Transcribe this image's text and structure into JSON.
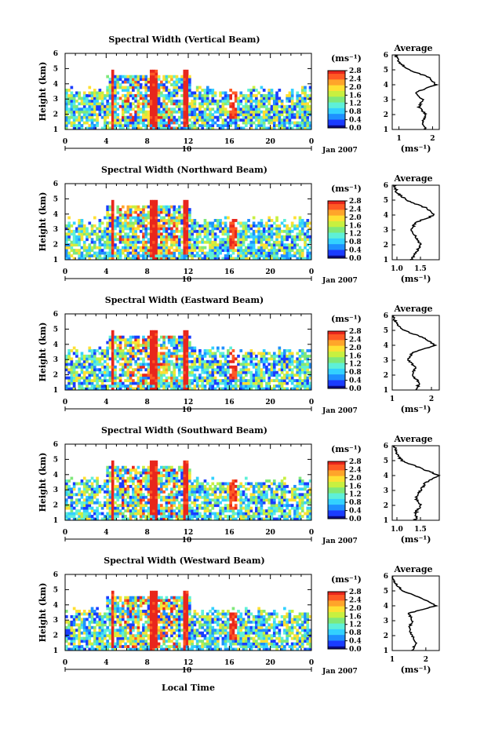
{
  "chart_data": {
    "type": "heatmap",
    "x_ticks": [
      "0",
      "4",
      "8",
      "12",
      "16",
      "20",
      "0"
    ],
    "y_ticks": [
      "1",
      "2",
      "3",
      "4",
      "5",
      "6"
    ],
    "xlim": [
      0,
      24
    ],
    "ylim": [
      1,
      6
    ],
    "y_label": "Height (km)",
    "x_label": "Local Time",
    "date_day": "10",
    "date_month": "Jan 2007",
    "colorbar_unit": "(ms⁻¹)",
    "avg_title": "Average",
    "avg_unit": "(ms⁻¹)",
    "panels": [
      {
        "title": "Spectral Width (Vertical Beam)",
        "colorbar_ticks": [
          "0.0",
          "0.4",
          "0.8",
          "1.2",
          "1.6",
          "2.0",
          "2.4",
          "2.8"
        ],
        "avg_xlim": [
          0.8,
          2.2
        ],
        "avg_xticks": [
          "1",
          "2"
        ],
        "average_profile": [
          [
            1.0,
            1.8
          ],
          [
            1.5,
            1.7
          ],
          [
            2.0,
            1.8
          ],
          [
            2.5,
            1.6
          ],
          [
            3.0,
            1.7
          ],
          [
            3.5,
            1.5
          ],
          [
            4.0,
            2.1
          ],
          [
            4.5,
            1.9
          ],
          [
            5.0,
            1.3
          ],
          [
            5.5,
            1.0
          ],
          [
            6.0,
            0.9
          ]
        ]
      },
      {
        "title": "Spectral Width (Northward Beam)",
        "colorbar_ticks": [
          "0.0",
          "0.4",
          "0.8",
          "1.2",
          "1.6",
          "2.0",
          "2.4",
          "2.8"
        ],
        "avg_xlim": [
          0.9,
          1.9
        ],
        "avg_xticks": [
          "1.0",
          "1.5"
        ],
        "average_profile": [
          [
            1.0,
            1.3
          ],
          [
            1.5,
            1.4
          ],
          [
            2.0,
            1.5
          ],
          [
            2.5,
            1.4
          ],
          [
            3.0,
            1.3
          ],
          [
            3.5,
            1.4
          ],
          [
            4.0,
            1.8
          ],
          [
            4.5,
            1.6
          ],
          [
            5.0,
            1.2
          ],
          [
            5.5,
            1.0
          ],
          [
            6.0,
            0.95
          ]
        ]
      },
      {
        "title": "Spectral Width (Eastward Beam)",
        "colorbar_ticks": [
          "0.0",
          "0.4",
          "0.8",
          "1.2",
          "1.6",
          "2.0",
          "2.4",
          "2.8"
        ],
        "avg_xlim": [
          1.0,
          2.2
        ],
        "avg_xticks": [
          "1",
          "2"
        ],
        "average_profile": [
          [
            1.0,
            1.6
          ],
          [
            1.5,
            1.7
          ],
          [
            2.0,
            1.5
          ],
          [
            2.5,
            1.6
          ],
          [
            3.0,
            1.4
          ],
          [
            3.5,
            1.5
          ],
          [
            4.0,
            2.1
          ],
          [
            4.5,
            1.8
          ],
          [
            5.0,
            1.3
          ],
          [
            5.5,
            1.1
          ],
          [
            6.0,
            1.0
          ]
        ]
      },
      {
        "title": "Spectral Width (Southward Beam)",
        "colorbar_ticks": [
          "0.0",
          "0.4",
          "0.8",
          "1.2",
          "1.6",
          "2.0",
          "2.4",
          "2.8"
        ],
        "avg_xlim": [
          0.9,
          1.9
        ],
        "avg_xticks": [
          "1.0",
          "1.5"
        ],
        "average_profile": [
          [
            1.0,
            1.4
          ],
          [
            1.5,
            1.4
          ],
          [
            2.0,
            1.5
          ],
          [
            2.5,
            1.4
          ],
          [
            3.0,
            1.5
          ],
          [
            3.5,
            1.6
          ],
          [
            4.0,
            1.9
          ],
          [
            4.5,
            1.5
          ],
          [
            5.0,
            1.1
          ],
          [
            5.5,
            1.0
          ],
          [
            6.0,
            0.95
          ]
        ]
      },
      {
        "title": "Spectral Width (Westward Beam)",
        "colorbar_ticks": [
          "0.0",
          "0.4",
          "0.8",
          "1.2",
          "1.6",
          "2.0",
          "2.4",
          "2.8"
        ],
        "avg_xlim": [
          1.0,
          2.4
        ],
        "avg_xticks": [
          "1",
          "2"
        ],
        "average_profile": [
          [
            1.0,
            1.6
          ],
          [
            1.5,
            1.7
          ],
          [
            2.0,
            1.6
          ],
          [
            2.5,
            1.5
          ],
          [
            3.0,
            1.6
          ],
          [
            3.5,
            1.5
          ],
          [
            4.0,
            2.3
          ],
          [
            4.5,
            1.9
          ],
          [
            5.0,
            1.3
          ],
          [
            5.5,
            1.1
          ],
          [
            6.0,
            1.0
          ]
        ]
      }
    ]
  }
}
